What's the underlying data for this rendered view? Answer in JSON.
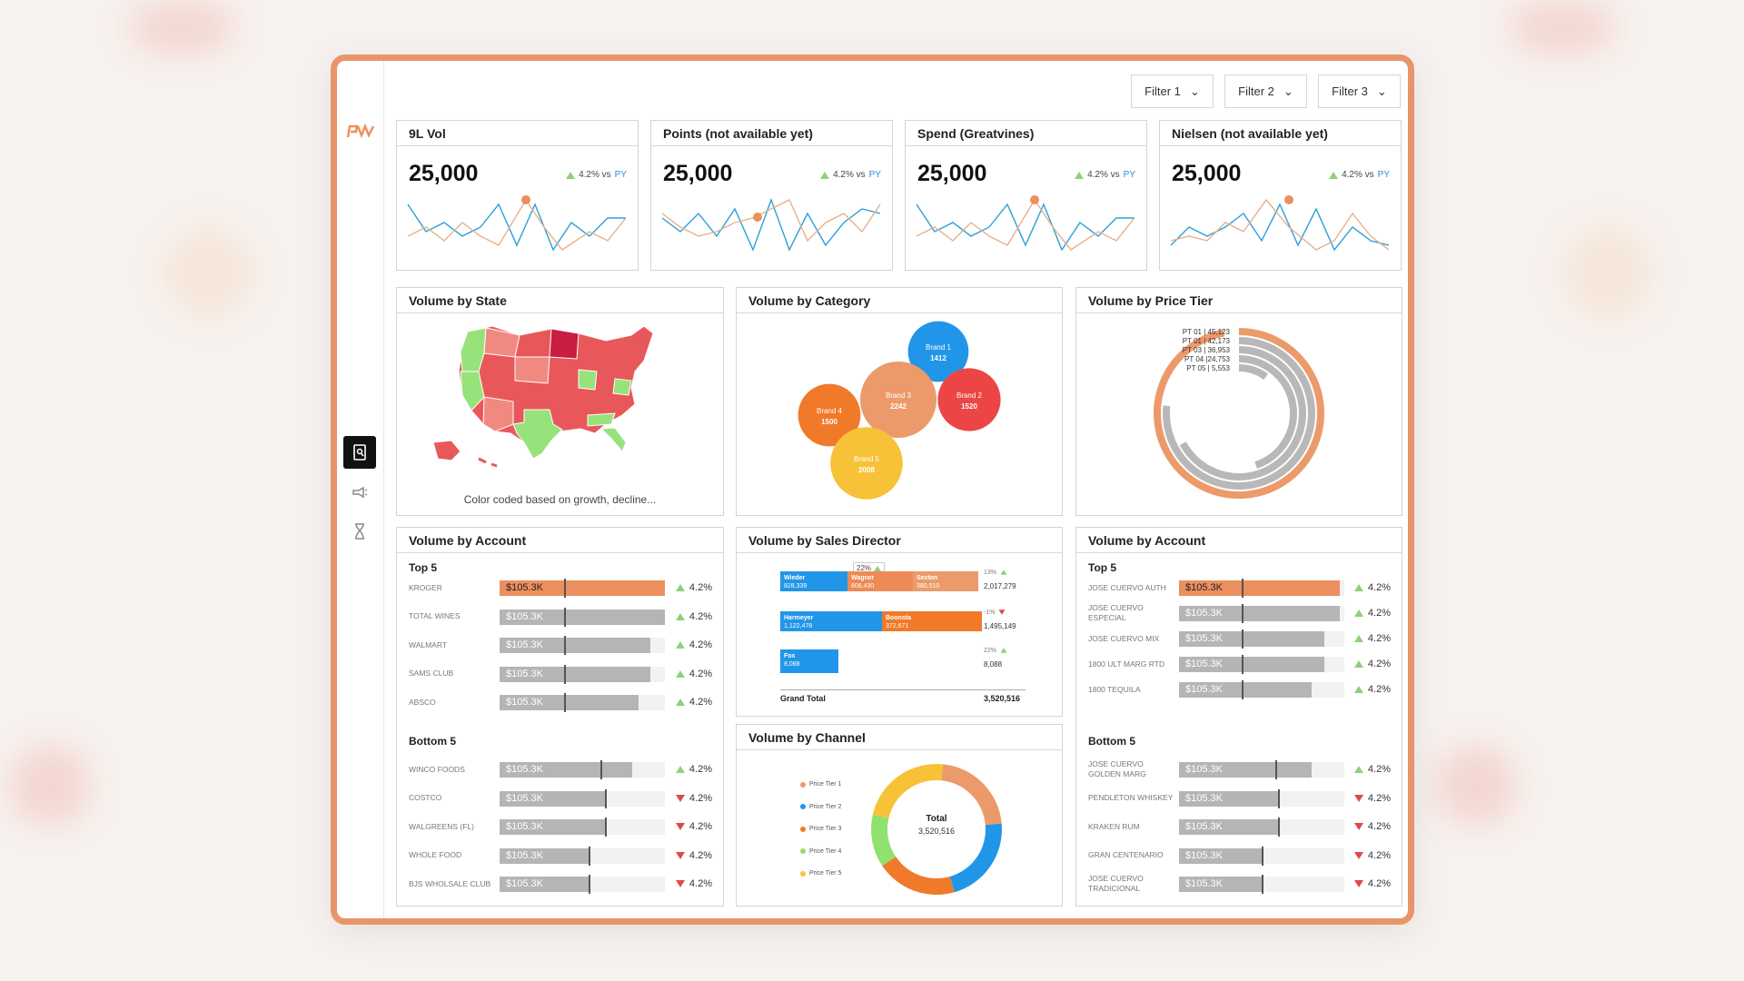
{
  "filters": [
    "Filter 1",
    "Filter 2",
    "Filter 3"
  ],
  "kpis": [
    {
      "title": "9L Vol",
      "value": "25,000",
      "delta": "4.2% vs",
      "py": "PY"
    },
    {
      "title": "Points (not available yet)",
      "value": "25,000",
      "delta": "4.2% vs",
      "py": "PY"
    },
    {
      "title": "Spend (Greatvines)",
      "value": "25,000",
      "delta": "4.2% vs",
      "py": "PY"
    },
    {
      "title": "Nielsen (not available yet)",
      "value": "25,000",
      "delta": "4.2% vs",
      "py": "PY"
    }
  ],
  "state": {
    "title": "Volume by State",
    "note": "Color coded based on growth, decline..."
  },
  "category": {
    "title": "Volume by Category",
    "chart_data": {
      "type": "bubble",
      "series": [
        {
          "name": "Brand 1",
          "value": 1412,
          "color": "#2196e8"
        },
        {
          "name": "Brand 2",
          "value": 1520,
          "color": "#ec4545"
        },
        {
          "name": "Brand 3",
          "value": 2242,
          "color": "#ec9a6a"
        },
        {
          "name": "Brand 4",
          "value": 1500,
          "color": "#f07a2a"
        },
        {
          "name": "Brand 5",
          "value": 2008,
          "color": "#f7c238"
        }
      ]
    }
  },
  "price_tier": {
    "title": "Volume by Price Tier",
    "chart_data": {
      "type": "radial-bar",
      "series": [
        {
          "label": "PT 01 | 45,123",
          "value": 45123
        },
        {
          "label": "PT 01 | 42,173",
          "value": 42173
        },
        {
          "label": "PT 03 | 36,953",
          "value": 36953
        },
        {
          "label": "PT 04 |24,753",
          "value": 24753
        },
        {
          "label": "PT 05 | 5,553",
          "value": 5553
        }
      ]
    }
  },
  "account_left": {
    "title": "Volume by Account",
    "top_title": "Top 5",
    "bottom_title": "Bottom 5",
    "top": [
      {
        "name": "KROGER",
        "label": "$105.3K",
        "fill": 1.0,
        "mark": 0.39,
        "delta": "4.2%",
        "dir": "up",
        "hl": true
      },
      {
        "name": "TOTAL WINES",
        "label": "$105.3K",
        "fill": 1.0,
        "mark": 0.39,
        "delta": "4.2%",
        "dir": "up"
      },
      {
        "name": "WALMART",
        "label": "$105.3K",
        "fill": 0.91,
        "mark": 0.39,
        "delta": "4.2%",
        "dir": "up"
      },
      {
        "name": "SAMS CLUB",
        "label": "$105.3K",
        "fill": 0.91,
        "mark": 0.39,
        "delta": "4.2%",
        "dir": "up"
      },
      {
        "name": "ABSCO",
        "label": "$105.3K",
        "fill": 0.84,
        "mark": 0.39,
        "delta": "4.2%",
        "dir": "up"
      }
    ],
    "bottom": [
      {
        "name": "WINCO FOODS",
        "label": "$105.3K",
        "fill": 0.8,
        "mark": 0.61,
        "delta": "4.2%",
        "dir": "up"
      },
      {
        "name": "COSTCO",
        "label": "$105.3K",
        "fill": 0.64,
        "mark": 0.64,
        "delta": "4.2%",
        "dir": "down"
      },
      {
        "name": "WALGREENS (FL)",
        "label": "$105.3K",
        "fill": 0.64,
        "mark": 0.64,
        "delta": "4.2%",
        "dir": "down"
      },
      {
        "name": "WHOLE FOOD",
        "label": "$105.3K",
        "fill": 0.54,
        "mark": 0.54,
        "delta": "4.2%",
        "dir": "down"
      },
      {
        "name": "BJS WHOLSALE CLUB",
        "label": "$105.3K",
        "fill": 0.54,
        "mark": 0.54,
        "delta": "4.2%",
        "dir": "down"
      }
    ]
  },
  "sales_director": {
    "title": "Volume by Sales Director",
    "callout": "22%",
    "rows": [
      {
        "segments": [
          {
            "name": "Wieder",
            "value": "828,339",
            "color": "#2196e8",
            "w": 74
          },
          {
            "name": "Wagner",
            "value": "808,430",
            "color": "#ee8a55",
            "w": 72
          },
          {
            "name": "Sexton",
            "value": "380,510",
            "color": "#ec9a6a",
            "w": 72
          }
        ],
        "pct": "13%",
        "dir": "up",
        "total": "2,017,279"
      },
      {
        "segments": [
          {
            "name": "Harmeyer",
            "value": "1,122,478",
            "color": "#2196e8",
            "w": 112
          },
          {
            "name": "Boonsta",
            "value": "372,671",
            "color": "#f07a2a",
            "w": 110
          }
        ],
        "pct": "-1%",
        "dir": "down",
        "total": "1,495,149"
      },
      {
        "segments": [
          {
            "name": "Fox",
            "value": "8,088",
            "color": "#2196e8",
            "w": 64
          }
        ],
        "pct": "22%",
        "dir": "up",
        "total": "8,088"
      }
    ],
    "grand_total_label": "Grand Total",
    "grand_total": "3,520,516"
  },
  "account_right": {
    "title": "Volume by Account",
    "top_title": "Top 5",
    "bottom_title": "Bottom 5",
    "top": [
      {
        "name": "JOSE CUERVO AUTH",
        "label": "$105.3K",
        "fill": 0.97,
        "mark": 0.38,
        "delta": "4.2%",
        "dir": "up",
        "hl": true
      },
      {
        "name": "JOSE CUERVO ESPECIAL",
        "label": "$105.3K",
        "fill": 0.97,
        "mark": 0.38,
        "delta": "4.2%",
        "dir": "up"
      },
      {
        "name": "JOSE CUERVO MIX",
        "label": "$105.3K",
        "fill": 0.88,
        "mark": 0.38,
        "delta": "4.2%",
        "dir": "up"
      },
      {
        "name": "1800 ULT MARG RTD",
        "label": "$105.3K",
        "fill": 0.88,
        "mark": 0.38,
        "delta": "4.2%",
        "dir": "up"
      },
      {
        "name": "1800 TEQUILA",
        "label": "$105.3K",
        "fill": 0.8,
        "mark": 0.38,
        "delta": "4.2%",
        "dir": "up"
      }
    ],
    "bottom": [
      {
        "name": "JOSE CUERVO GOLDEN MARG",
        "label": "$105.3K",
        "fill": 0.8,
        "mark": 0.58,
        "delta": "4.2%",
        "dir": "up"
      },
      {
        "name": "PENDLETON WHISKEY",
        "label": "$105.3K",
        "fill": 0.6,
        "mark": 0.6,
        "delta": "4.2%",
        "dir": "down"
      },
      {
        "name": "KRAKEN RUM",
        "label": "$105.3K",
        "fill": 0.6,
        "mark": 0.6,
        "delta": "4.2%",
        "dir": "down"
      },
      {
        "name": "GRAN CENTENARIO",
        "label": "$105.3K",
        "fill": 0.5,
        "mark": 0.5,
        "delta": "4.2%",
        "dir": "down"
      },
      {
        "name": "JOSE CUERVO TRADICIONAL",
        "label": "$105.3K",
        "fill": 0.5,
        "mark": 0.5,
        "delta": "4.2%",
        "dir": "down"
      }
    ]
  },
  "channel": {
    "title": "Volume by Channel",
    "total_label": "Total",
    "total": "3,520,516",
    "chart_data": {
      "type": "pie",
      "series": [
        {
          "name": "Price Tier 1",
          "share": 0.22,
          "color": "#ec9a6a"
        },
        {
          "name": "Price Tier 2",
          "share": 0.22,
          "color": "#2196e8"
        },
        {
          "name": "Price Tier 3",
          "share": 0.2,
          "color": "#f07a2a"
        },
        {
          "name": "Price Tier 4",
          "share": 0.13,
          "color": "#8fe26e"
        },
        {
          "name": "Price Tier 5",
          "share": 0.23,
          "color": "#f7c238"
        }
      ]
    }
  },
  "colors": {
    "accent": "#e8956a",
    "blue": "#2196e8",
    "orange": "#f07a2a",
    "green": "#8fd17a",
    "red": "#e04848"
  }
}
